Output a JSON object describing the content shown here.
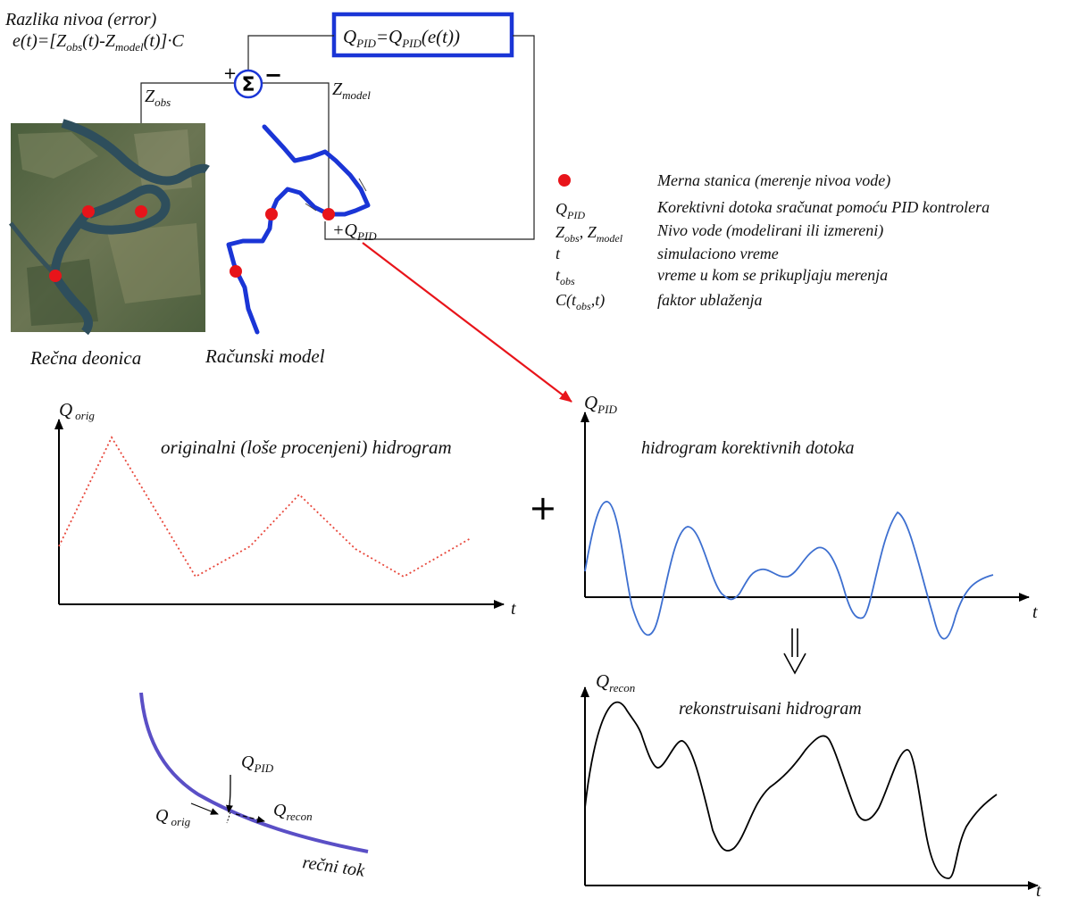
{
  "error_block": {
    "title": "Razlika nivoa (error)",
    "eq_a": "e(t)=[Z",
    "eq_a_sub": "obs",
    "eq_b": "(t)-Z",
    "eq_b_sub": "model",
    "eq_c": "(t)]·C"
  },
  "pid_box": {
    "q1": "Q",
    "s1": "PID",
    "mid": "=Q",
    "s2": "PID",
    "end": "(e(t))"
  },
  "sum_block": {
    "symbol": "Σ",
    "plus": "+",
    "minus": "−"
  },
  "signal_labels": {
    "zobs": "Z",
    "zobs_sub": "obs",
    "zmodel": "Z",
    "zmodel_sub": "model",
    "qpid_plus": "+Q",
    "qpid_sub": "PID"
  },
  "captions": {
    "river_section": "Rečna deonica",
    "numerical_model": "Računski model"
  },
  "legend": {
    "station": "Merna stanica (merenje nivoa vode)",
    "qpid_sym": "Q",
    "qpid_sub": "PID",
    "qpid_desc": "Korektivni dotoka sračunat pomoću PID kontrolera",
    "z_sym1": "Z",
    "z_sub1": "obs",
    "z_sym2": ", Z",
    "z_sub2": "model",
    "z_desc": "Nivo vode (modelirani ili izmereni)",
    "t_sym": "t",
    "t_desc": "simulaciono vreme",
    "tobs_sym": "t",
    "tobs_sub": "obs",
    "tobs_desc": "vreme u kom se prikupljaju merenja",
    "c_sym_a": "C(t",
    "c_sub": "obs",
    "c_sym_b": ",t)",
    "c_desc": "faktor ublaženja"
  },
  "chart_orig": {
    "y_label": "Q",
    "y_sub": "orig",
    "x_label": "t",
    "title": "originalni (loše procenjeni) hidrogram",
    "color": "#e8483c"
  },
  "chart_pid": {
    "y_label": "Q",
    "y_sub": "PID",
    "x_label": "t",
    "title": "hidrogram korektivnih dotoka",
    "color": "#3d6fd0"
  },
  "chart_recon": {
    "y_label": "Q",
    "y_sub": "recon",
    "x_label": "t",
    "title": "rekonstruisani hidrogram",
    "color": "#000000"
  },
  "operators": {
    "plus": "+"
  },
  "river_flow": {
    "qpid": "Q",
    "qpid_sub": "PID",
    "qorig": "Q",
    "qorig_sub": "orig",
    "qrecon": "Q",
    "qrecon_sub": "recon",
    "label": "rečni tok"
  },
  "colors": {
    "pid_box": "#1a35d6",
    "river": "#1a35d6",
    "station": "#e8141a",
    "arrow": "#e8141a",
    "flow": "#5a4fc6"
  }
}
